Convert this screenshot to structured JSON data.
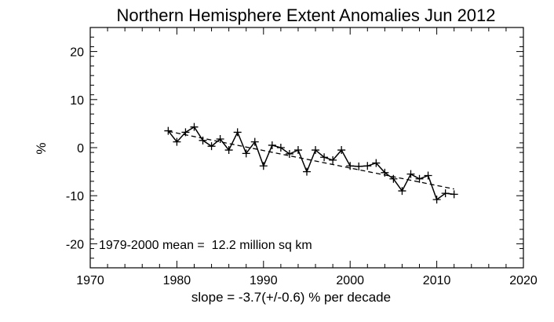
{
  "chart_data": {
    "type": "line",
    "title": "Northern Hemisphere Extent Anomalies Jun 2012",
    "xlabel": "slope = -3.7(+/-0.6) % per decade",
    "ylabel": "%",
    "xlim": [
      1970,
      2020
    ],
    "ylim": [
      -25,
      25
    ],
    "xticks": [
      1970,
      1980,
      1990,
      2000,
      2010,
      2020
    ],
    "yticks": [
      20,
      10,
      0,
      -10,
      -20
    ],
    "grid": false,
    "annotation": "1979-2000 mean =  12.2 million sq km",
    "series": [
      {
        "style": "solid line with plus markers",
        "x": [
          1979,
          1980,
          1981,
          1982,
          1983,
          1984,
          1985,
          1986,
          1987,
          1988,
          1989,
          1990,
          1991,
          1992,
          1993,
          1994,
          1995,
          1996,
          1997,
          1998,
          1999,
          2000,
          2001,
          2002,
          2003,
          2004,
          2005,
          2006,
          2007,
          2008,
          2009,
          2010,
          2011,
          2012
        ],
        "y": [
          3.5,
          1.2,
          3.2,
          4.3,
          1.5,
          0.3,
          1.8,
          -0.5,
          3.2,
          -1.2,
          1.2,
          -3.8,
          0.5,
          0.0,
          -1.3,
          -0.5,
          -5.0,
          -0.5,
          -2.0,
          -2.6,
          -0.5,
          -3.8,
          -3.9,
          -3.8,
          -3.2,
          -5.2,
          -6.5,
          -9.0,
          -5.5,
          -6.5,
          -5.8,
          -10.8,
          -9.5,
          -9.7
        ]
      },
      {
        "style": "dashed trend line",
        "x": [
          1979,
          2012
        ],
        "y": [
          3.4,
          -8.6
        ]
      }
    ]
  }
}
